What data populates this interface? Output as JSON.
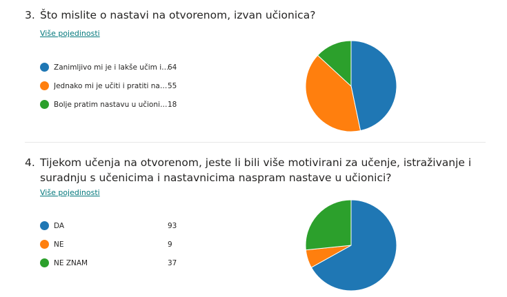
{
  "questions": [
    {
      "number": "3.",
      "title": "Što mislite o nastavi na otvorenom, izvan učionica?",
      "more_label": "Više pojedinosti",
      "chart_data": {
        "type": "pie",
        "categories": [
          "Zanimljivo mi je i lakše učim iz...",
          "Jednako mi je učiti i pratiti nas...",
          "Bolje pratim nastavu u učionic..."
        ],
        "values": [
          64,
          55,
          18
        ],
        "colors": [
          "#1f77b4",
          "#ff7f0e",
          "#2ca02c"
        ]
      }
    },
    {
      "number": "4.",
      "title": "Tijekom učenja na otvorenom, jeste li bili više motivirani za učenje, istraživanje i suradnju s učenicima i nastavnicima naspram nastave u učionici?",
      "more_label": "Više pojedinosti",
      "chart_data": {
        "type": "pie",
        "categories": [
          "DA",
          "NE",
          "NE ZNAM"
        ],
        "values": [
          93,
          9,
          37
        ],
        "colors": [
          "#1f77b4",
          "#ff7f0e",
          "#2ca02c"
        ]
      }
    }
  ]
}
